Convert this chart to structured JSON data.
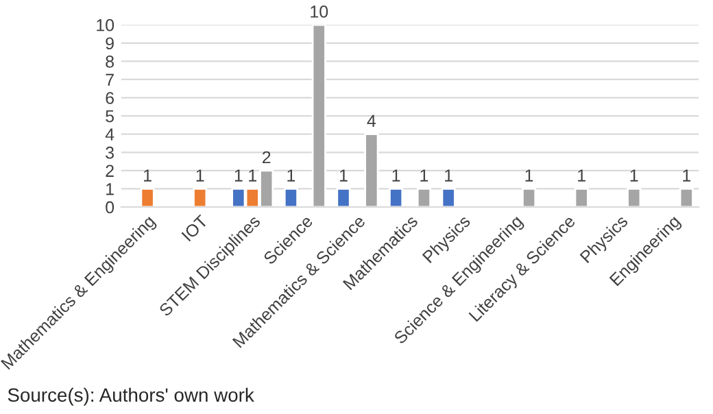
{
  "chart_data": {
    "type": "bar",
    "categories": [
      "Mathematics & Engineering",
      "IOT",
      "STEM Disciplines",
      "Science",
      "Mathematics & Science",
      "Mathematics",
      "Physics",
      "Science & Engineering",
      "Literacy & Science",
      "Physics",
      "Engineering"
    ],
    "series": [
      {
        "color": "#4472c4",
        "values": [
          null,
          null,
          1,
          1,
          1,
          1,
          1,
          null,
          null,
          null,
          null
        ]
      },
      {
        "color": "#ed7d31",
        "values": [
          1,
          1,
          1,
          null,
          null,
          null,
          null,
          null,
          null,
          null,
          null
        ]
      },
      {
        "color": "#a5a5a5",
        "values": [
          null,
          null,
          2,
          10,
          4,
          1,
          null,
          1,
          1,
          1,
          1
        ]
      }
    ],
    "ylim": [
      0,
      10
    ],
    "yticks": [
      0,
      1,
      2,
      3,
      4,
      5,
      6,
      7,
      8,
      9,
      10
    ],
    "grid": "y",
    "data_labels": true,
    "annotations": [
      "Source(s): Authors' own work"
    ]
  }
}
